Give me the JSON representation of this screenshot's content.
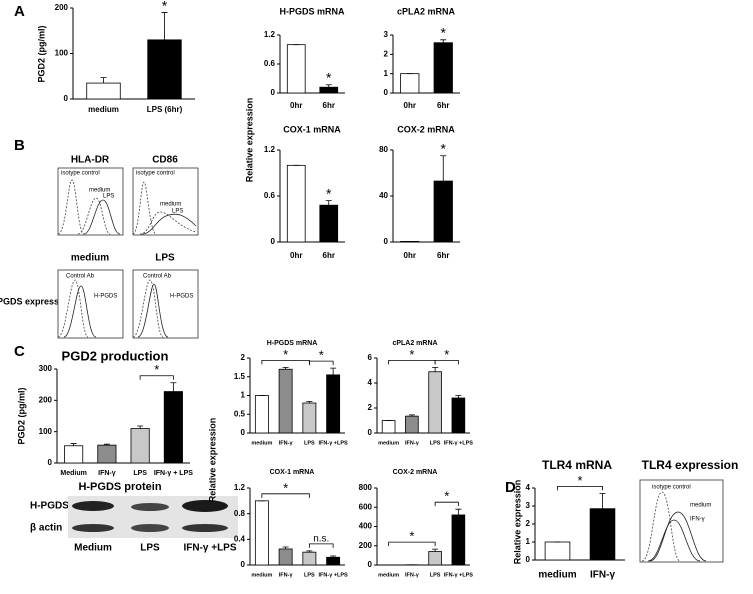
{
  "panel_labels": [
    "A",
    "B",
    "C",
    "D"
  ],
  "flow": {
    "B": {
      "titles": [
        "HLA-DR",
        "CD86"
      ],
      "labels_top": [
        "isotype control",
        "medium",
        "LPS"
      ],
      "conditions": [
        "medium",
        "LPS"
      ],
      "row_label": "H-PGDS expression",
      "labels_bottom": [
        "Control Ab",
        "H-PGDS"
      ]
    },
    "D": {
      "title": "TLR4 expression",
      "labels": [
        "isotype control",
        "medium",
        "IFN-γ"
      ]
    }
  },
  "blot": {
    "title": "H-PGDS protein",
    "rows": [
      "H-PGDS",
      "β actin"
    ],
    "columns": [
      "Medium",
      "LPS",
      "IFN-γ +LPS"
    ]
  },
  "chart_data": [
    {
      "type": "bar",
      "ylabel": "PGD2 (pg/ml)",
      "categories": [
        "medium",
        "LPS (6hr)"
      ],
      "values": [
        35,
        130
      ],
      "errors": [
        12,
        60
      ],
      "colors": [
        "#ffffff",
        "#000000"
      ],
      "ylim": [
        0,
        200
      ],
      "yticks": [
        0,
        100,
        200
      ],
      "annotations": [
        {
          "label": "*",
          "bar": 1
        }
      ]
    },
    {
      "type": "bar",
      "title": "H-PGDS mRNA",
      "ylabel": "Relative expression",
      "categories": [
        "0hr",
        "6hr"
      ],
      "values": [
        1,
        0.12
      ],
      "errors": [
        0,
        0.05
      ],
      "colors": [
        "#ffffff",
        "#000000"
      ],
      "ylim": [
        0,
        1.2
      ],
      "yticks": [
        0,
        0.6,
        1.2
      ],
      "annotations": [
        {
          "label": "*",
          "bar": 1
        }
      ]
    },
    {
      "type": "bar",
      "title": "cPLA2 mRNA",
      "categories": [
        "0hr",
        "6hr"
      ],
      "values": [
        1,
        2.6
      ],
      "errors": [
        0,
        0.15
      ],
      "colors": [
        "#ffffff",
        "#000000"
      ],
      "ylim": [
        0,
        3
      ],
      "yticks": [
        0,
        1,
        2,
        3
      ],
      "annotations": [
        {
          "label": "*",
          "bar": 1
        }
      ]
    },
    {
      "type": "bar",
      "title": "COX-1 mRNA",
      "categories": [
        "0hr",
        "6hr"
      ],
      "values": [
        1,
        0.48
      ],
      "errors": [
        0,
        0.06
      ],
      "colors": [
        "#ffffff",
        "#000000"
      ],
      "ylim": [
        0,
        1.2
      ],
      "yticks": [
        0,
        0.6,
        1.2
      ],
      "annotations": [
        {
          "label": "*",
          "bar": 1
        }
      ]
    },
    {
      "type": "bar",
      "title": "COX-2 mRNA",
      "categories": [
        "0hr",
        "6hr"
      ],
      "values": [
        0.5,
        53
      ],
      "errors": [
        0,
        22
      ],
      "colors": [
        "#ffffff",
        "#000000"
      ],
      "ylim": [
        0,
        80
      ],
      "yticks": [
        0,
        40,
        80
      ],
      "annotations": [
        {
          "label": "*",
          "bar": 1
        }
      ]
    },
    {
      "type": "bar",
      "title": "PGD2 production",
      "ylabel": "PGD2 (pg/ml)",
      "categories": [
        "Medium",
        "IFN-γ",
        "LPS",
        "IFN-γ + LPS"
      ],
      "values": [
        55,
        57,
        110,
        228
      ],
      "errors": [
        7,
        3,
        8,
        28
      ],
      "colors": [
        "#ffffff",
        "#8c8c8c",
        "#c8c8c8",
        "#000000"
      ],
      "ylim": [
        0,
        300
      ],
      "yticks": [
        0,
        100,
        200,
        300
      ],
      "brackets": [
        {
          "label": "*",
          "from": 2,
          "to": 3
        }
      ]
    },
    {
      "type": "bar",
      "title": "H-PGDS mRNA",
      "ylabel": "Relative expression",
      "categories": [
        "medium",
        "IFN-γ",
        "LPS",
        "IFN-γ +LPS"
      ],
      "values": [
        1,
        1.7,
        0.8,
        1.55
      ],
      "errors": [
        0,
        0.05,
        0.04,
        0.18
      ],
      "colors": [
        "#ffffff",
        "#8c8c8c",
        "#c8c8c8",
        "#000000"
      ],
      "ylim": [
        0,
        2
      ],
      "yticks": [
        0,
        0.5,
        1,
        1.5,
        2
      ],
      "brackets": [
        {
          "label": "*",
          "from": 0,
          "to": 2
        },
        {
          "label": "*",
          "from": 2,
          "to": 3
        }
      ]
    },
    {
      "type": "bar",
      "title": "cPLA2 mRNA",
      "categories": [
        "medium",
        "IFN-γ",
        "LPS",
        "IFN-γ +LPS"
      ],
      "values": [
        1,
        1.35,
        4.9,
        2.8
      ],
      "errors": [
        0,
        0.1,
        0.35,
        0.2
      ],
      "colors": [
        "#ffffff",
        "#8c8c8c",
        "#c8c8c8",
        "#000000"
      ],
      "ylim": [
        0,
        6
      ],
      "yticks": [
        0,
        2,
        4,
        6
      ],
      "brackets": [
        {
          "label": "*",
          "from": 0,
          "to": 2
        },
        {
          "label": "*",
          "from": 2,
          "to": 3
        }
      ]
    },
    {
      "type": "bar",
      "title": "COX-1 mRNA",
      "categories": [
        "medium",
        "IFN-γ",
        "LPS",
        "IFN-γ +LPS"
      ],
      "values": [
        1,
        0.25,
        0.2,
        0.12
      ],
      "errors": [
        0,
        0.03,
        0.02,
        0.02
      ],
      "colors": [
        "#ffffff",
        "#8c8c8c",
        "#c8c8c8",
        "#000000"
      ],
      "ylim": [
        0,
        1.2
      ],
      "yticks": [
        0,
        0.4,
        0.8,
        1.2
      ],
      "brackets": [
        {
          "label": "*",
          "from": 0,
          "to": 2
        },
        {
          "label": "n.s.",
          "from": 2,
          "to": 3
        }
      ]
    },
    {
      "type": "bar",
      "title": "COX-2 mRNA",
      "categories": [
        "medium",
        "IFN-γ",
        "LPS",
        "IFN-γ +LPS"
      ],
      "values": [
        1,
        2,
        140,
        520
      ],
      "errors": [
        0,
        0,
        25,
        60
      ],
      "colors": [
        "#ffffff",
        "#8c8c8c",
        "#c8c8c8",
        "#000000"
      ],
      "ylim": [
        0,
        800
      ],
      "yticks": [
        0,
        200,
        400,
        600,
        800
      ],
      "brackets": [
        {
          "label": "*",
          "from": 0,
          "to": 2
        },
        {
          "label": "*",
          "from": 2,
          "to": 3
        }
      ]
    },
    {
      "type": "bar",
      "title": "TLR4 mRNA",
      "ylabel": "Relative expression",
      "categories": [
        "medium",
        "IFN-γ"
      ],
      "values": [
        1,
        2.85
      ],
      "errors": [
        0,
        0.85
      ],
      "colors": [
        "#ffffff",
        "#000000"
      ],
      "ylim": [
        0,
        4
      ],
      "yticks": [
        0,
        1,
        2,
        3,
        4
      ],
      "brackets": [
        {
          "label": "*",
          "from": 0,
          "to": 1
        }
      ]
    }
  ]
}
